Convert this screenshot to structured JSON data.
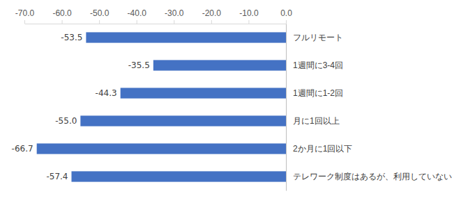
{
  "chart_data": {
    "type": "bar",
    "orientation": "horizontal",
    "categories": [
      "フルリモート",
      "1週間に3-4回",
      "1週間に1-2回",
      "月に1回以上",
      "2か月に1回以下",
      "テレワーク制度はあるが、利用していない"
    ],
    "values": [
      -53.5,
      -35.5,
      -44.3,
      -55.0,
      -66.7,
      -57.4
    ],
    "value_labels": [
      "-53.5",
      "-35.5",
      "-44.3",
      "-55.0",
      "-66.7",
      "-57.4"
    ],
    "color": "#4472c4",
    "xlim": [
      -70,
      0
    ],
    "xticks": [
      {
        "value": -70,
        "label": "-70.0"
      },
      {
        "value": -60,
        "label": "-60.0"
      },
      {
        "value": -50,
        "label": "-50.0"
      },
      {
        "value": -40,
        "label": "-40.0"
      },
      {
        "value": -30,
        "label": "-30.0"
      },
      {
        "value": -20,
        "label": "-20.0"
      },
      {
        "value": -10,
        "label": "-10.0"
      },
      {
        "value": 0,
        "label": "0.0"
      }
    ],
    "grid": false,
    "data_labels": true
  }
}
